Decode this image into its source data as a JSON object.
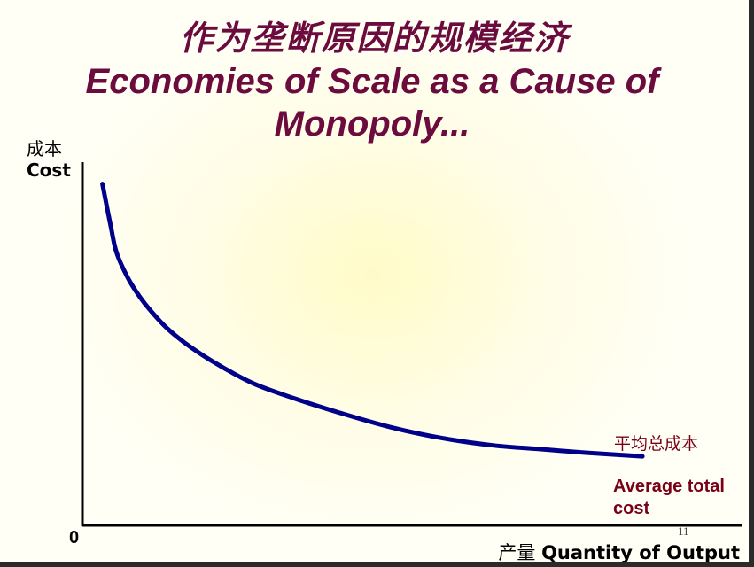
{
  "title_cn": "作为垄断原因的规模经济",
  "title_en": "Economies of Scale as a Cause of Monopoly...",
  "axes": {
    "y_label_cn": "成本",
    "y_label_en": "Cost",
    "x_label_cn": "产量",
    "x_label_en": "Quantity of Output",
    "origin": "0"
  },
  "curve_label": {
    "cn": "平均总成本",
    "en": "Average total cost"
  },
  "page_number": "11",
  "colors": {
    "title": "#6b0b3e",
    "curve": "#00008b",
    "curve_label": "#7a0018",
    "axis": "#000000"
  },
  "chart_data": {
    "type": "line",
    "title": "Economies of Scale as a Cause of Monopoly...",
    "xlabel": "Quantity of Output",
    "ylabel": "Cost",
    "x_ticks": [
      "0"
    ],
    "y_ticks": [],
    "grid": false,
    "xlim": [
      0,
      100
    ],
    "ylim": [
      0,
      100
    ],
    "series": [
      {
        "name": "Average total cost",
        "x": [
          3.5,
          5,
          6,
          8,
          10,
          12,
          15,
          19,
          24,
          30,
          37,
          45,
          54,
          63,
          72,
          80,
          88,
          98
        ],
        "y": [
          94,
          82,
          75,
          68,
          63,
          59,
          54,
          49,
          44,
          39,
          35,
          31,
          27,
          24,
          22,
          21,
          20,
          19
        ]
      }
    ]
  }
}
